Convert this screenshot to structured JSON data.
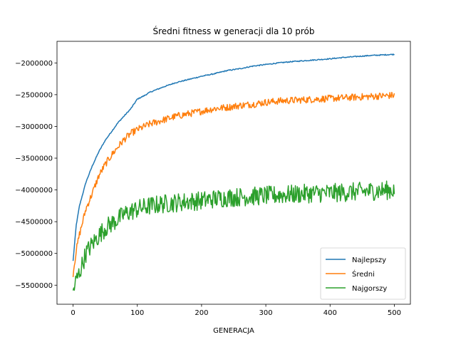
{
  "chart_data": {
    "type": "line",
    "title": "Średni fitness w generacji dla 10 prób",
    "xlabel": "GENERACJA",
    "ylabel": "",
    "xlim": [
      -25,
      525
    ],
    "ylim": [
      -5800000,
      -1660000
    ],
    "xticks": [
      0,
      100,
      200,
      300,
      400,
      500
    ],
    "yticks": [
      -5500000,
      -5000000,
      -4500000,
      -4000000,
      -3500000,
      -3000000,
      -2500000,
      -2000000
    ],
    "legend_position": "lower-right",
    "grid": false,
    "generations": 501,
    "series": [
      {
        "name": "Najlepszy",
        "color": "#1f77b4",
        "anchors": [
          [
            0,
            -5120000
          ],
          [
            5,
            -4550000
          ],
          [
            10,
            -4250000
          ],
          [
            20,
            -3880000
          ],
          [
            30,
            -3620000
          ],
          [
            40,
            -3400000
          ],
          [
            50,
            -3220000
          ],
          [
            60,
            -3080000
          ],
          [
            70,
            -2940000
          ],
          [
            80,
            -2830000
          ],
          [
            90,
            -2720000
          ],
          [
            100,
            -2570000
          ],
          [
            110,
            -2520000
          ],
          [
            120,
            -2460000
          ],
          [
            140,
            -2380000
          ],
          [
            160,
            -2310000
          ],
          [
            180,
            -2260000
          ],
          [
            200,
            -2210000
          ],
          [
            220,
            -2170000
          ],
          [
            240,
            -2120000
          ],
          [
            260,
            -2090000
          ],
          [
            280,
            -2050000
          ],
          [
            300,
            -2025000
          ],
          [
            320,
            -2000000
          ],
          [
            340,
            -1980000
          ],
          [
            360,
            -1965000
          ],
          [
            380,
            -1950000
          ],
          [
            400,
            -1935000
          ],
          [
            420,
            -1915000
          ],
          [
            440,
            -1900000
          ],
          [
            460,
            -1885000
          ],
          [
            480,
            -1875000
          ],
          [
            500,
            -1865000
          ]
        ],
        "noise": 8000
      },
      {
        "name": "Średni",
        "color": "#ff7f0e",
        "anchors": [
          [
            0,
            -5320000
          ],
          [
            5,
            -4950000
          ],
          [
            10,
            -4700000
          ],
          [
            20,
            -4300000
          ],
          [
            30,
            -4050000
          ],
          [
            40,
            -3780000
          ],
          [
            50,
            -3600000
          ],
          [
            60,
            -3450000
          ],
          [
            70,
            -3320000
          ],
          [
            80,
            -3200000
          ],
          [
            90,
            -3110000
          ],
          [
            100,
            -3050000
          ],
          [
            120,
            -2960000
          ],
          [
            140,
            -2900000
          ],
          [
            160,
            -2840000
          ],
          [
            180,
            -2800000
          ],
          [
            200,
            -2760000
          ],
          [
            220,
            -2720000
          ],
          [
            240,
            -2700000
          ],
          [
            260,
            -2670000
          ],
          [
            280,
            -2650000
          ],
          [
            300,
            -2620000
          ],
          [
            320,
            -2600000
          ],
          [
            340,
            -2590000
          ],
          [
            360,
            -2580000
          ],
          [
            380,
            -2570000
          ],
          [
            400,
            -2560000
          ],
          [
            420,
            -2550000
          ],
          [
            440,
            -2540000
          ],
          [
            460,
            -2530000
          ],
          [
            480,
            -2520000
          ],
          [
            500,
            -2510000
          ]
        ],
        "noise": 55000
      },
      {
        "name": "Najgorszy",
        "color": "#2ca02c",
        "anchors": [
          [
            0,
            -5600000
          ],
          [
            5,
            -5420000
          ],
          [
            10,
            -5300000
          ],
          [
            20,
            -5000000
          ],
          [
            30,
            -4850000
          ],
          [
            40,
            -4720000
          ],
          [
            50,
            -4600000
          ],
          [
            60,
            -4530000
          ],
          [
            70,
            -4460000
          ],
          [
            80,
            -4380000
          ],
          [
            100,
            -4300000
          ],
          [
            120,
            -4250000
          ],
          [
            140,
            -4220000
          ],
          [
            160,
            -4200000
          ],
          [
            180,
            -4180000
          ],
          [
            200,
            -4170000
          ],
          [
            220,
            -4140000
          ],
          [
            240,
            -4120000
          ],
          [
            260,
            -4110000
          ],
          [
            280,
            -4100000
          ],
          [
            300,
            -4090000
          ],
          [
            320,
            -4080000
          ],
          [
            340,
            -4070000
          ],
          [
            360,
            -4060000
          ],
          [
            380,
            -4050000
          ],
          [
            400,
            -4050000
          ],
          [
            420,
            -4040000
          ],
          [
            440,
            -4030000
          ],
          [
            460,
            -4020000
          ],
          [
            480,
            -4010000
          ],
          [
            500,
            -4000000
          ]
        ],
        "noise": 150000
      }
    ]
  }
}
